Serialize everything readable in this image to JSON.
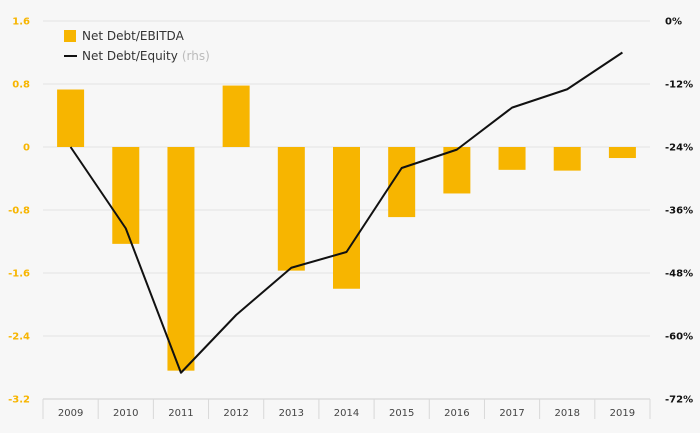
{
  "chart_data": {
    "type": "bar",
    "categories": [
      "2009",
      "2010",
      "2011",
      "2012",
      "2013",
      "2014",
      "2015",
      "2016",
      "2017",
      "2018",
      "2019"
    ],
    "series": [
      {
        "name": "Net Debt/EBITDA",
        "chart_type": "bar",
        "axis": "left",
        "values": [
          0.73,
          -1.23,
          -2.84,
          0.78,
          -1.57,
          -1.8,
          -0.89,
          -0.59,
          -0.29,
          -0.3,
          -0.14
        ],
        "color": "#f7b500"
      },
      {
        "name": "Net Debt/Equity",
        "legend_suffix": "(rhs)",
        "chart_type": "line",
        "axis": "right",
        "values": [
          -24,
          -39.5,
          -67,
          -56,
          -47,
          -44,
          -28,
          -24.5,
          -16.5,
          -13,
          -6
        ],
        "color": "#111111"
      }
    ],
    "y_left": {
      "ylim": [
        -3.2,
        1.6
      ],
      "ticks": [
        "1.6",
        "0.8",
        "0",
        "-0.8",
        "-1.6",
        "-2.4",
        "-3.2"
      ]
    },
    "y_right": {
      "ylim": [
        -72,
        0
      ],
      "ticks": [
        "0%",
        "-12%",
        "-24%",
        "-36%",
        "-48%",
        "-60%",
        "-72%"
      ]
    },
    "grid": true,
    "legend_position": "top-left"
  }
}
